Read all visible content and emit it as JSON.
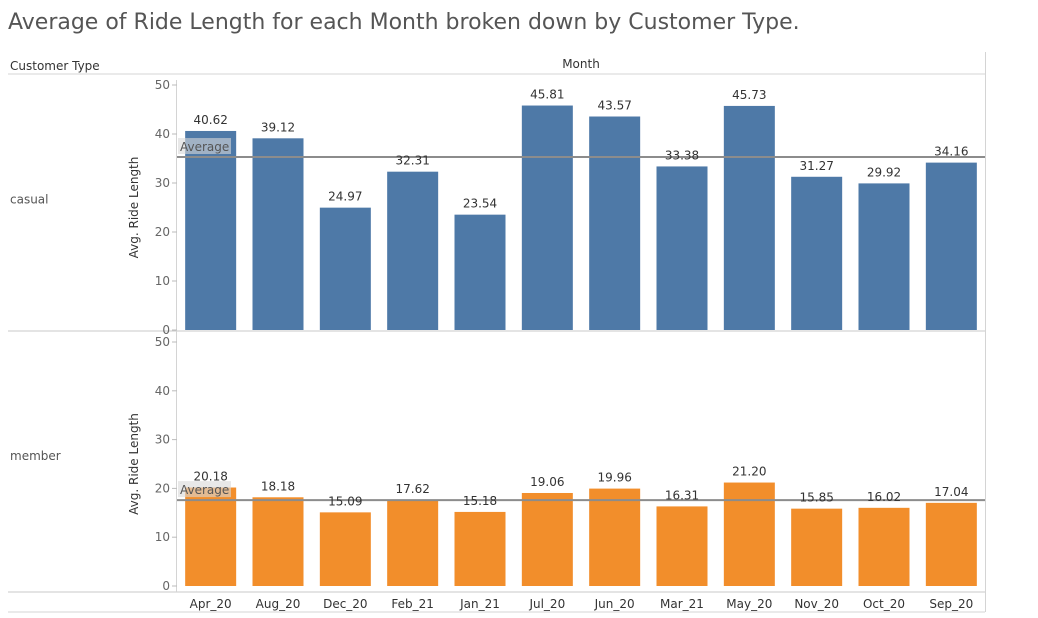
{
  "title": "Average of Ride Length for each Month broken down by Customer Type.",
  "row_header": "Customer Type",
  "column_header": "Month",
  "reference_line_label": "Average",
  "chart_data": {
    "type": "bar",
    "categories": [
      "Apr_20",
      "Aug_20",
      "Dec_20",
      "Feb_21",
      "Jan_21",
      "Jul_20",
      "Jun_20",
      "Mar_21",
      "May_20",
      "Nov_20",
      "Oct_20",
      "Sep_20"
    ],
    "ylabel": "Avg. Ride Length",
    "ylim": [
      0,
      50
    ],
    "yticks": [
      0,
      10,
      20,
      30,
      40,
      50
    ],
    "reference_line": "Average",
    "panels": [
      {
        "name": "casual",
        "color": "#4e79a7",
        "values": [
          40.62,
          39.12,
          24.97,
          32.31,
          23.54,
          45.81,
          43.57,
          33.38,
          45.73,
          31.27,
          29.92,
          34.16
        ],
        "labels": [
          "40.62",
          "39.12",
          "24.97",
          "32.31",
          "23.54",
          "45.81",
          "43.57",
          "33.38",
          "45.73",
          "31.27",
          "29.92",
          "34.16"
        ],
        "average": 35.3
      },
      {
        "name": "member",
        "color": "#f28e2b",
        "values": [
          20.18,
          18.18,
          15.09,
          17.62,
          15.18,
          19.06,
          19.96,
          16.31,
          21.2,
          15.85,
          16.02,
          17.04
        ],
        "labels": [
          "20.18",
          "18.18",
          "15.09",
          "17.62",
          "15.18",
          "19.06",
          "19.96",
          "16.31",
          "21.20",
          "15.85",
          "16.02",
          "17.04"
        ],
        "average": 17.6
      }
    ]
  }
}
